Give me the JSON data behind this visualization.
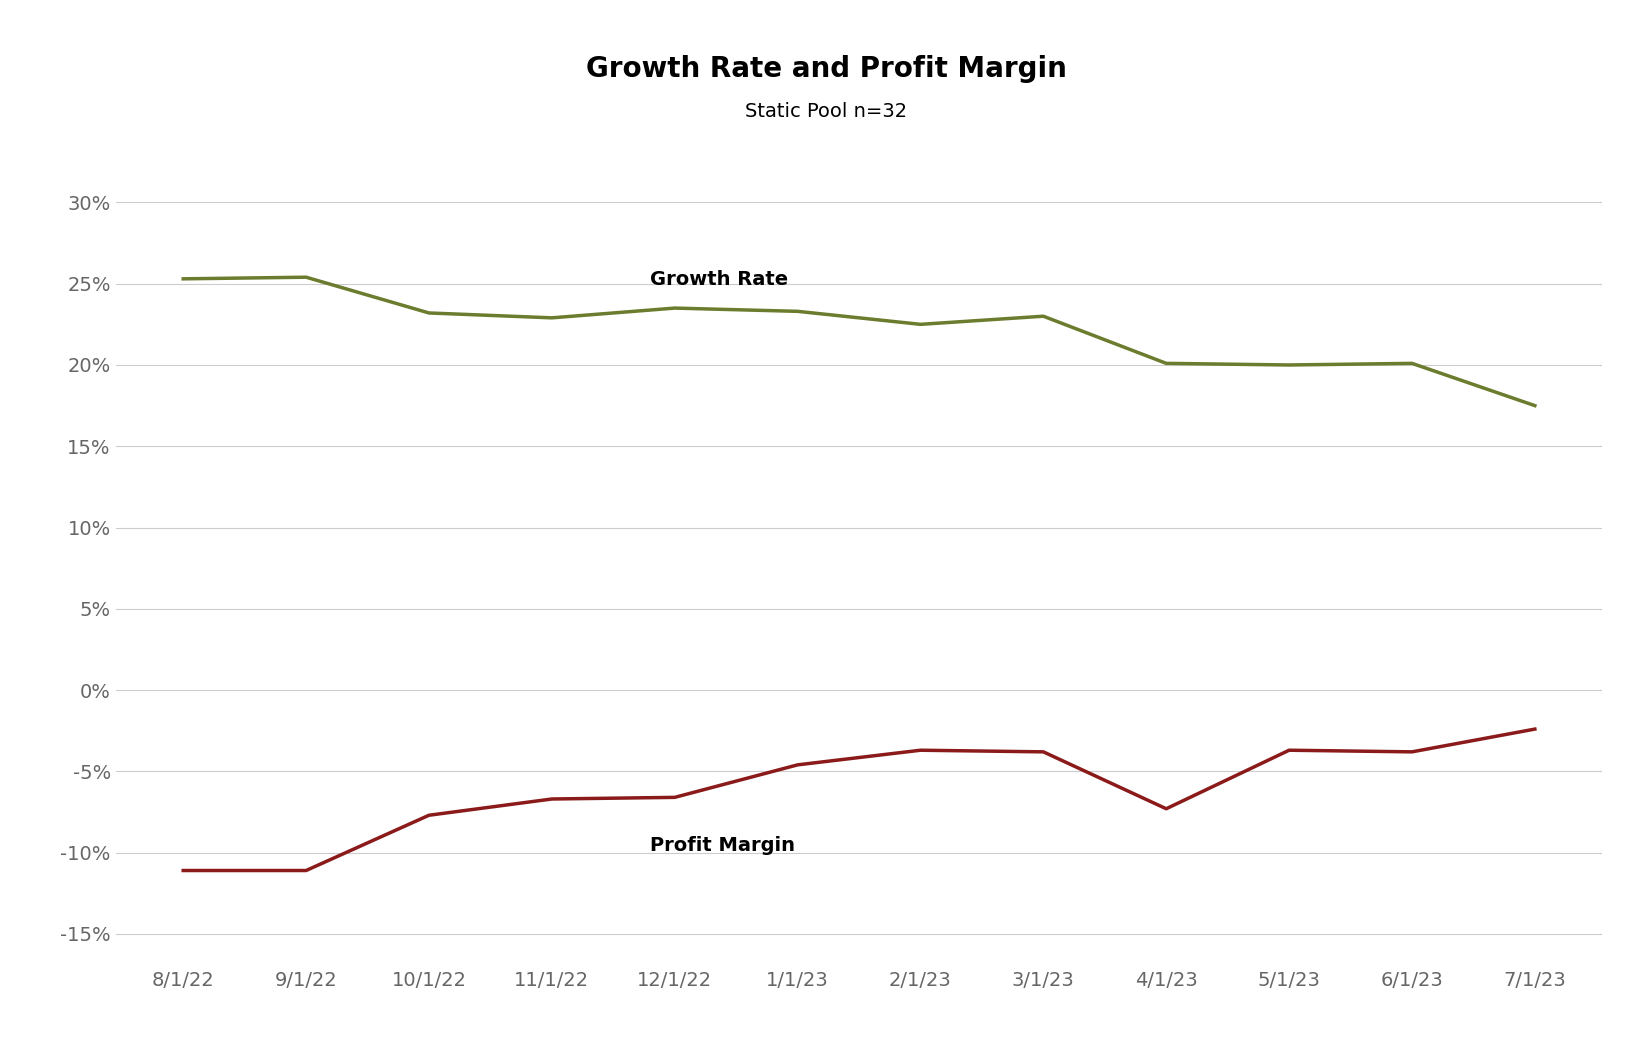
{
  "title": "Growth Rate and Profit Margin",
  "subtitle": "Static Pool n=32",
  "x_labels": [
    "8/1/22",
    "9/1/22",
    "10/1/22",
    "11/1/22",
    "12/1/22",
    "1/1/23",
    "2/1/23",
    "3/1/23",
    "4/1/23",
    "5/1/23",
    "6/1/23",
    "7/1/23"
  ],
  "growth_rate": [
    0.253,
    0.254,
    0.232,
    0.229,
    0.235,
    0.233,
    0.225,
    0.23,
    0.201,
    0.2,
    0.201,
    0.175
  ],
  "profit_margin": [
    -0.111,
    -0.111,
    -0.077,
    -0.067,
    -0.066,
    -0.046,
    -0.037,
    -0.038,
    -0.073,
    -0.037,
    -0.038,
    -0.024
  ],
  "growth_color": "#6b7c2e",
  "profit_color": "#8b1a1a",
  "growth_label": "Growth Rate",
  "profit_label": "Profit Margin",
  "ylim": [
    -0.17,
    0.32
  ],
  "yticks": [
    -0.15,
    -0.1,
    -0.05,
    0.0,
    0.05,
    0.1,
    0.15,
    0.2,
    0.25,
    0.3
  ],
  "background_color": "#ffffff",
  "grid_color": "#cccccc",
  "title_fontsize": 20,
  "subtitle_fontsize": 14,
  "label_fontsize": 14,
  "tick_fontsize": 14,
  "line_width": 2.5
}
